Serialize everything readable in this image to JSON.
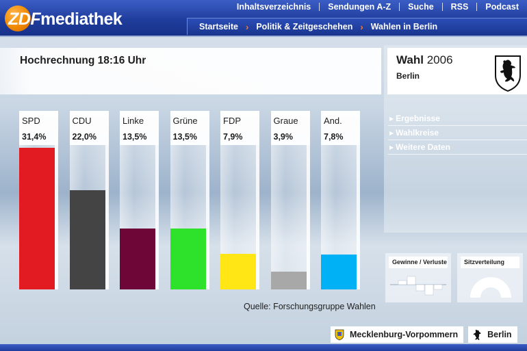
{
  "header": {
    "logo_zdf": "ZDF",
    "logo_rest": "mediathek",
    "top_nav": [
      "Inhaltsverzeichnis",
      "Sendungen A-Z",
      "Suche",
      "RSS",
      "Podcast"
    ],
    "breadcrumb": [
      "Startseite",
      "Politik & Zeitgeschehen",
      "Wahlen in Berlin"
    ],
    "colors": {
      "bar_blue": "#1f3d9c",
      "breadcrumb_arrow": "#ff7a2a",
      "logo_orange": "#f08a00"
    }
  },
  "main": {
    "title": "Hochrechnung 18:16 Uhr",
    "source": "Quelle: Forschungsgruppe Wahlen"
  },
  "chart_data": {
    "type": "bar",
    "title": "Hochrechnung 18:16 Uhr",
    "categories": [
      "SPD",
      "CDU",
      "Linke",
      "Grüne",
      "FDP",
      "Graue",
      "And."
    ],
    "values": [
      31.4,
      22.0,
      13.5,
      13.5,
      7.9,
      3.9,
      7.8
    ],
    "value_labels": [
      "31,4%",
      "22,0%",
      "13,5%",
      "13,5%",
      "7,9%",
      "3,9%",
      "7,8%"
    ],
    "colors": [
      "#e21a22",
      "#444444",
      "#6e0637",
      "#2ee12b",
      "#ffe614",
      "#a8a8a8",
      "#00b1f6"
    ],
    "ylim": [
      0,
      32
    ]
  },
  "sidebar": {
    "wahl_label": "Wahl",
    "wahl_year": "2006",
    "region": "Berlin",
    "crest_icon": "berlin-bear-crest-icon",
    "links": [
      "Ergebnisse",
      "Wahlkreise",
      "Weitere Daten"
    ],
    "widgets": {
      "gains_losses": "Gewinne / Verluste",
      "seats": "Sitzverteilung"
    }
  },
  "footer": {
    "state_buttons": [
      "Mecklenburg-Vorpommern",
      "Berlin"
    ]
  }
}
